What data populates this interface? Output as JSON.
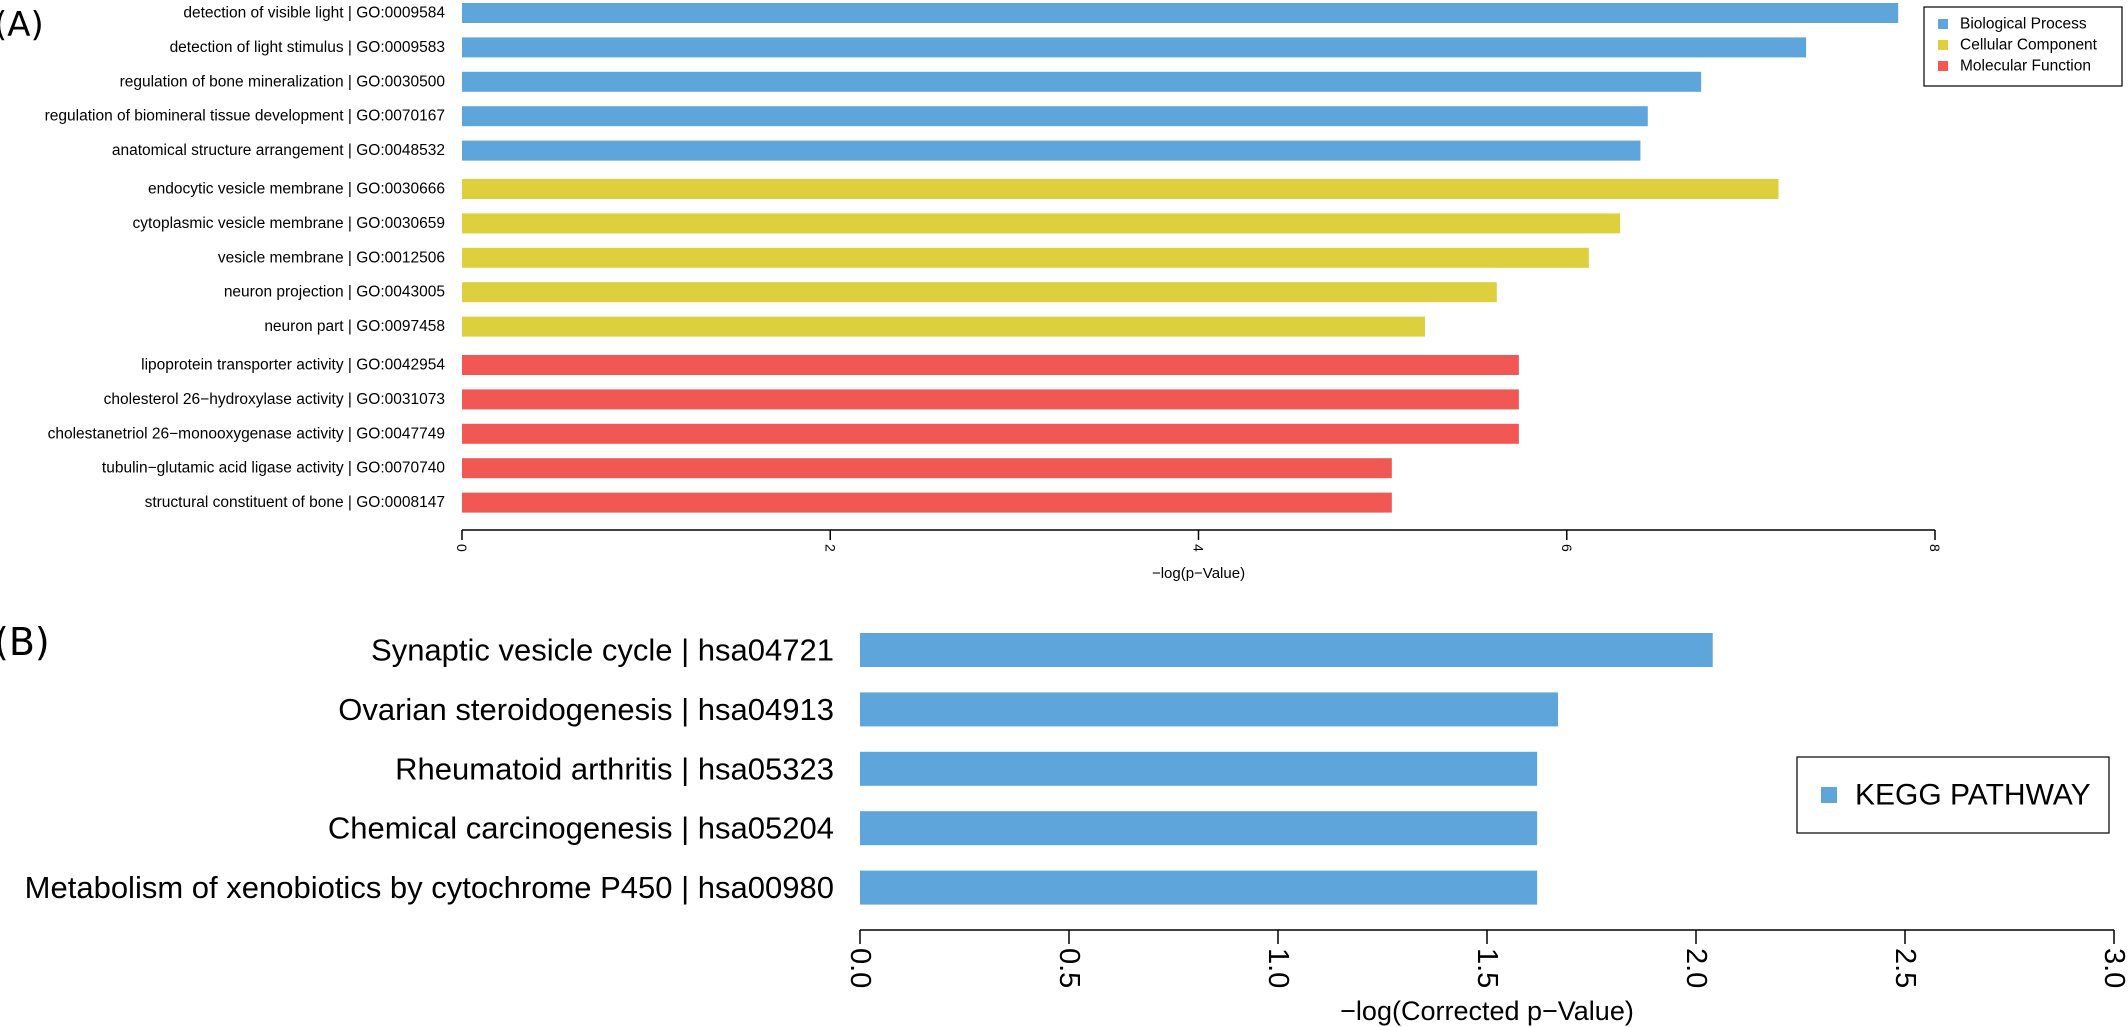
{
  "chart_data": [
    {
      "panel_label": "(A)",
      "type": "bar",
      "orientation": "horizontal",
      "xlabel": "−log(p−Value)",
      "xlim": [
        0,
        8
      ],
      "xticks": [
        "0",
        "2",
        "4",
        "6",
        "8"
      ],
      "legend": {
        "placement": "top-right",
        "entries": [
          {
            "name": "Biological Process",
            "color": "#5DA5DA"
          },
          {
            "name": "Cellular Component",
            "color": "#DECF3F"
          },
          {
            "name": "Molecular Function",
            "color": "#F15854"
          }
        ]
      },
      "bars": [
        {
          "label": "detection of visible light | GO:0009584",
          "value": 7.8,
          "group": 0
        },
        {
          "label": "detection of light stimulus | GO:0009583",
          "value": 7.3,
          "group": 0
        },
        {
          "label": "regulation of bone mineralization | GO:0030500",
          "value": 6.73,
          "group": 0
        },
        {
          "label": "regulation of biomineral tissue development | GO:0070167",
          "value": 6.44,
          "group": 0
        },
        {
          "label": "anatomical structure arrangement | GO:0048532",
          "value": 6.4,
          "group": 0
        },
        {
          "label": "endocytic vesicle membrane | GO:0030666",
          "value": 7.15,
          "group": 1
        },
        {
          "label": "cytoplasmic vesicle membrane | GO:0030659",
          "value": 6.29,
          "group": 1
        },
        {
          "label": "vesicle membrane | GO:0012506",
          "value": 6.12,
          "group": 1
        },
        {
          "label": "neuron projection | GO:0043005",
          "value": 5.62,
          "group": 1
        },
        {
          "label": "neuron part | GO:0097458",
          "value": 5.23,
          "group": 1
        },
        {
          "label": "lipoprotein transporter activity | GO:0042954",
          "value": 5.74,
          "group": 2
        },
        {
          "label": "cholesterol 26−hydroxylase activity | GO:0031073",
          "value": 5.74,
          "group": 2
        },
        {
          "label": "cholestanetriol 26−monooxygenase activity | GO:0047749",
          "value": 5.74,
          "group": 2
        },
        {
          "label": "tubulin−glutamic acid ligase activity | GO:0070740",
          "value": 5.05,
          "group": 2
        },
        {
          "label": "structural constituent of bone | GO:0008147",
          "value": 5.05,
          "group": 2
        }
      ]
    },
    {
      "panel_label": "(B)",
      "type": "bar",
      "orientation": "horizontal",
      "xlabel": "−log(Corrected p−Value)",
      "xlim": [
        0,
        3
      ],
      "xticks": [
        "0.0",
        "0.5",
        "1.0",
        "1.5",
        "2.0",
        "2.5",
        "3.0"
      ],
      "legend": {
        "placement": "right",
        "entries": [
          {
            "name": "KEGG PATHWAY",
            "color": "#5DA5DA"
          }
        ]
      },
      "bars": [
        {
          "label": "Synaptic vesicle cycle | hsa04721",
          "value": 2.04,
          "group": 0
        },
        {
          "label": "Ovarian steroidogenesis | hsa04913",
          "value": 1.67,
          "group": 0
        },
        {
          "label": "Rheumatoid arthritis | hsa05323",
          "value": 1.62,
          "group": 0
        },
        {
          "label": "Chemical carcinogenesis | hsa05204",
          "value": 1.62,
          "group": 0
        },
        {
          "label": "Metabolism of xenobiotics by cytochrome P450 | hsa00980",
          "value": 1.62,
          "group": 0
        }
      ]
    }
  ]
}
